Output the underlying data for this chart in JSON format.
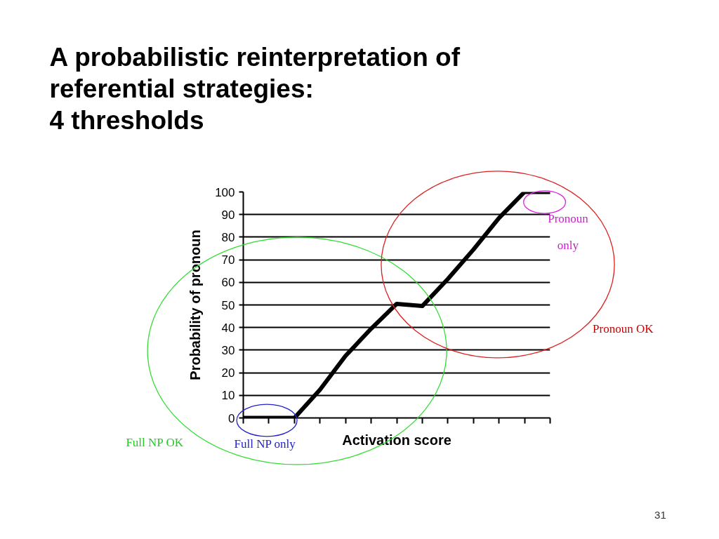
{
  "chart_data": {
    "type": "line",
    "title": "A probabilistic reinterpretation of\nreferential strategies:\n4 thresholds",
    "xlabel": "Activation score",
    "ylabel": "Probability of pronoun",
    "categories": [
      null,
      null,
      null,
      null,
      null,
      null,
      null,
      null,
      null,
      null,
      null,
      null,
      null
    ],
    "series": [
      {
        "color": "#000000",
        "values": [
          0,
          0,
          0,
          12.5,
          27.5,
          39.5,
          50.5,
          49.5,
          61.5,
          74.5,
          88.5,
          100,
          100
        ]
      }
    ],
    "ylim": [
      0,
      100
    ],
    "yticks": [
      0,
      10,
      20,
      30,
      40,
      50,
      60,
      70,
      80,
      90,
      100
    ],
    "grid": "y",
    "tick_labels": "y",
    "marker": "none",
    "line_style": "solid",
    "annotations": [
      "Full NP OK",
      "Full NP only",
      "Pronoun OK",
      "Pronoun\nonly",
      "31"
    ]
  }
}
